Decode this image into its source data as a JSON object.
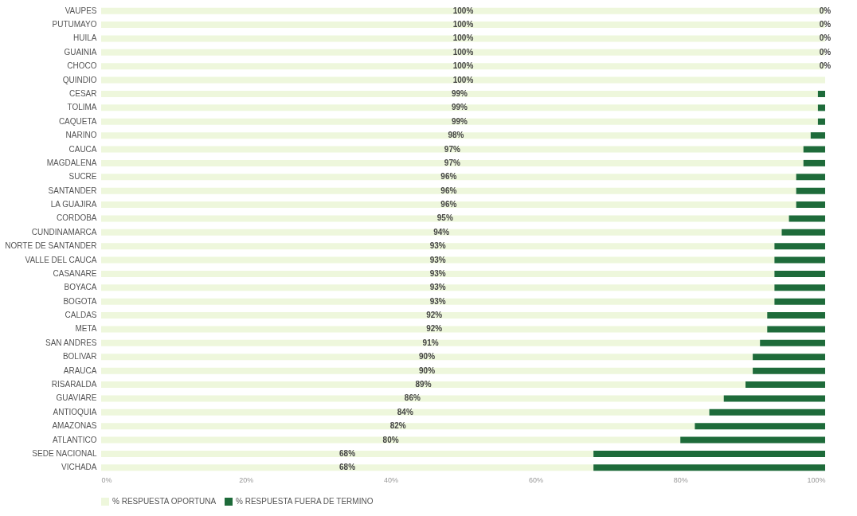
{
  "chart_data": {
    "type": "bar",
    "orientation": "horizontal",
    "stacked": true,
    "categories": [
      "VAUPES",
      "PUTUMAYO",
      "HUILA",
      "GUAINIA",
      "CHOCO",
      "QUINDIO",
      "CESAR",
      "TOLIMA",
      "CAQUETA",
      "NARINO",
      "CAUCA",
      "MAGDALENA",
      "SUCRE",
      "SANTANDER",
      "LA GUAJIRA",
      "CORDOBA",
      "CUNDINAMARCA",
      "NORTE DE SANTANDER",
      "VALLE DEL CAUCA",
      "CASANARE",
      "BOYACA",
      "BOGOTA",
      "CALDAS",
      "META",
      "SAN ANDRES",
      "BOLIVAR",
      "ARAUCA",
      "RISARALDA",
      "GUAVIARE",
      "ANTIOQUIA",
      "AMAZONAS",
      "ATLANTICO",
      "SEDE NACIONAL",
      "VICHADA"
    ],
    "series": [
      {
        "name": "% RESPUESTA OPORTUNA",
        "color": "#eef7dc",
        "values": [
          100,
          100,
          100,
          100,
          100,
          100,
          99,
          99,
          99,
          98,
          97,
          97,
          96,
          96,
          96,
          95,
          94,
          93,
          93,
          93,
          93,
          93,
          92,
          92,
          91,
          90,
          90,
          89,
          86,
          84,
          82,
          80,
          68,
          68
        ],
        "value_labels": [
          "100%",
          "100%",
          "100%",
          "100%",
          "100%",
          "100%",
          "99%",
          "99%",
          "99%",
          "98%",
          "97%",
          "97%",
          "96%",
          "96%",
          "96%",
          "95%",
          "94%",
          "93%",
          "93%",
          "93%",
          "93%",
          "93%",
          "92%",
          "92%",
          "91%",
          "90%",
          "90%",
          "89%",
          "86%",
          "84%",
          "82%",
          "80%",
          "68%",
          "68%"
        ]
      },
      {
        "name": "% RESPUESTA FUERA DE TERMINO",
        "color": "#1e6b3a",
        "values": [
          0,
          0,
          0,
          0,
          0,
          0,
          1,
          1,
          1,
          2,
          3,
          3,
          4,
          4,
          4,
          5,
          6,
          7,
          7,
          7,
          7,
          7,
          8,
          8,
          9,
          10,
          10,
          11,
          14,
          16,
          18,
          20,
          32,
          32
        ],
        "value_labels": [
          "0%",
          "0%",
          "0%",
          "0%",
          "0%",
          null,
          null,
          null,
          null,
          null,
          null,
          null,
          null,
          null,
          null,
          null,
          null,
          null,
          null,
          null,
          null,
          null,
          null,
          null,
          null,
          null,
          null,
          null,
          null,
          null,
          null,
          null,
          null,
          null
        ]
      }
    ],
    "xlim": [
      0,
      100
    ],
    "xticks": [
      {
        "value": 0,
        "label": "0%"
      },
      {
        "value": 20,
        "label": "20%"
      },
      {
        "value": 40,
        "label": "40%"
      },
      {
        "value": 60,
        "label": "60%"
      },
      {
        "value": 80,
        "label": "80%"
      },
      {
        "value": 100,
        "label": "100%"
      }
    ],
    "grid": false,
    "legend": "bottom"
  }
}
